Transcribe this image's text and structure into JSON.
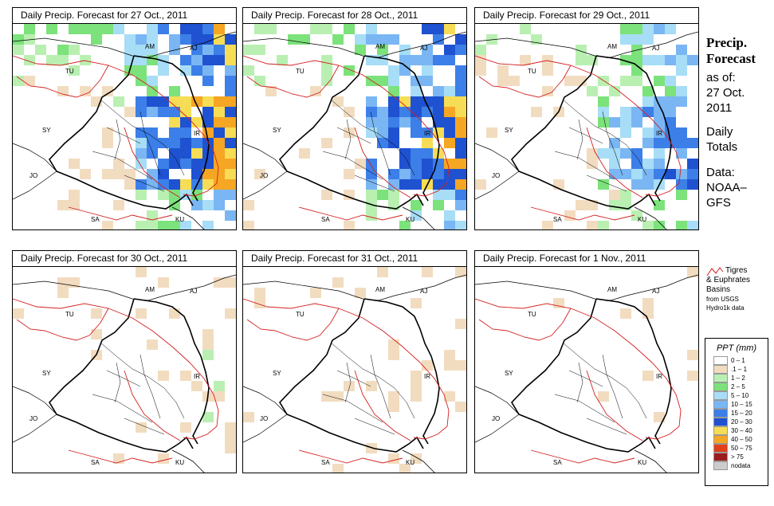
{
  "panels": [
    {
      "title": "Daily Precip. Forecast for  27 Oct., 2011",
      "intensity": 1.0
    },
    {
      "title": "Daily Precip. Forecast for  28 Oct., 2011",
      "intensity": 0.95
    },
    {
      "title": "Daily Precip. Forecast for  29 Oct., 2011",
      "intensity": 0.75
    },
    {
      "title": "Daily Precip. Forecast for  30 Oct., 2011",
      "intensity": 0.25
    },
    {
      "title": "Daily Precip. Forecast for  31 Oct., 2011",
      "intensity": 0.2
    },
    {
      "title": "Daily Precip. Forecast for  1 Nov., 2011",
      "intensity": 0.08
    }
  ],
  "country_labels": [
    "AM",
    "AJ",
    "TU",
    "SY",
    "IR",
    "JO",
    "SA",
    "KU"
  ],
  "sidebar": {
    "heading1": "Precip.",
    "heading2": "Forecast",
    "asof": "as of:",
    "date1": "27 Oct.",
    "date2": "2011",
    "totals1": "Daily",
    "totals2": "Totals",
    "data1": "Data:",
    "data2": "NOAA–",
    "data3": "GFS"
  },
  "basin_note": {
    "line1": "Tigres",
    "line2": "& Euphrates",
    "line3": "Basins",
    "line4": "from USGS",
    "line5": "Hydro1k data"
  },
  "legend": {
    "title": "PPT (mm)",
    "items": [
      {
        "label": "0 – 1",
        "color": "#ffffff"
      },
      {
        "label": ".1 – 1",
        "color": "#f2dcc0"
      },
      {
        "label": "1 – 2",
        "color": "#b9f0b2"
      },
      {
        "label": "2 – 5",
        "color": "#7ce27b"
      },
      {
        "label": "5 – 10",
        "color": "#a7ddf6"
      },
      {
        "label": "10 – 15",
        "color": "#7ab6f3"
      },
      {
        "label": "15 – 20",
        "color": "#3c7fe8"
      },
      {
        "label": "20 – 30",
        "color": "#1f52d0"
      },
      {
        "label": "30 – 40",
        "color": "#f7dd55"
      },
      {
        "label": "40 – 50",
        "color": "#f5a623"
      },
      {
        "label": "50 – 75",
        "color": "#e0401a"
      },
      {
        "label": "> 75",
        "color": "#9b1c1c"
      },
      {
        "label": "nodata",
        "color": "#cccccc"
      }
    ]
  }
}
